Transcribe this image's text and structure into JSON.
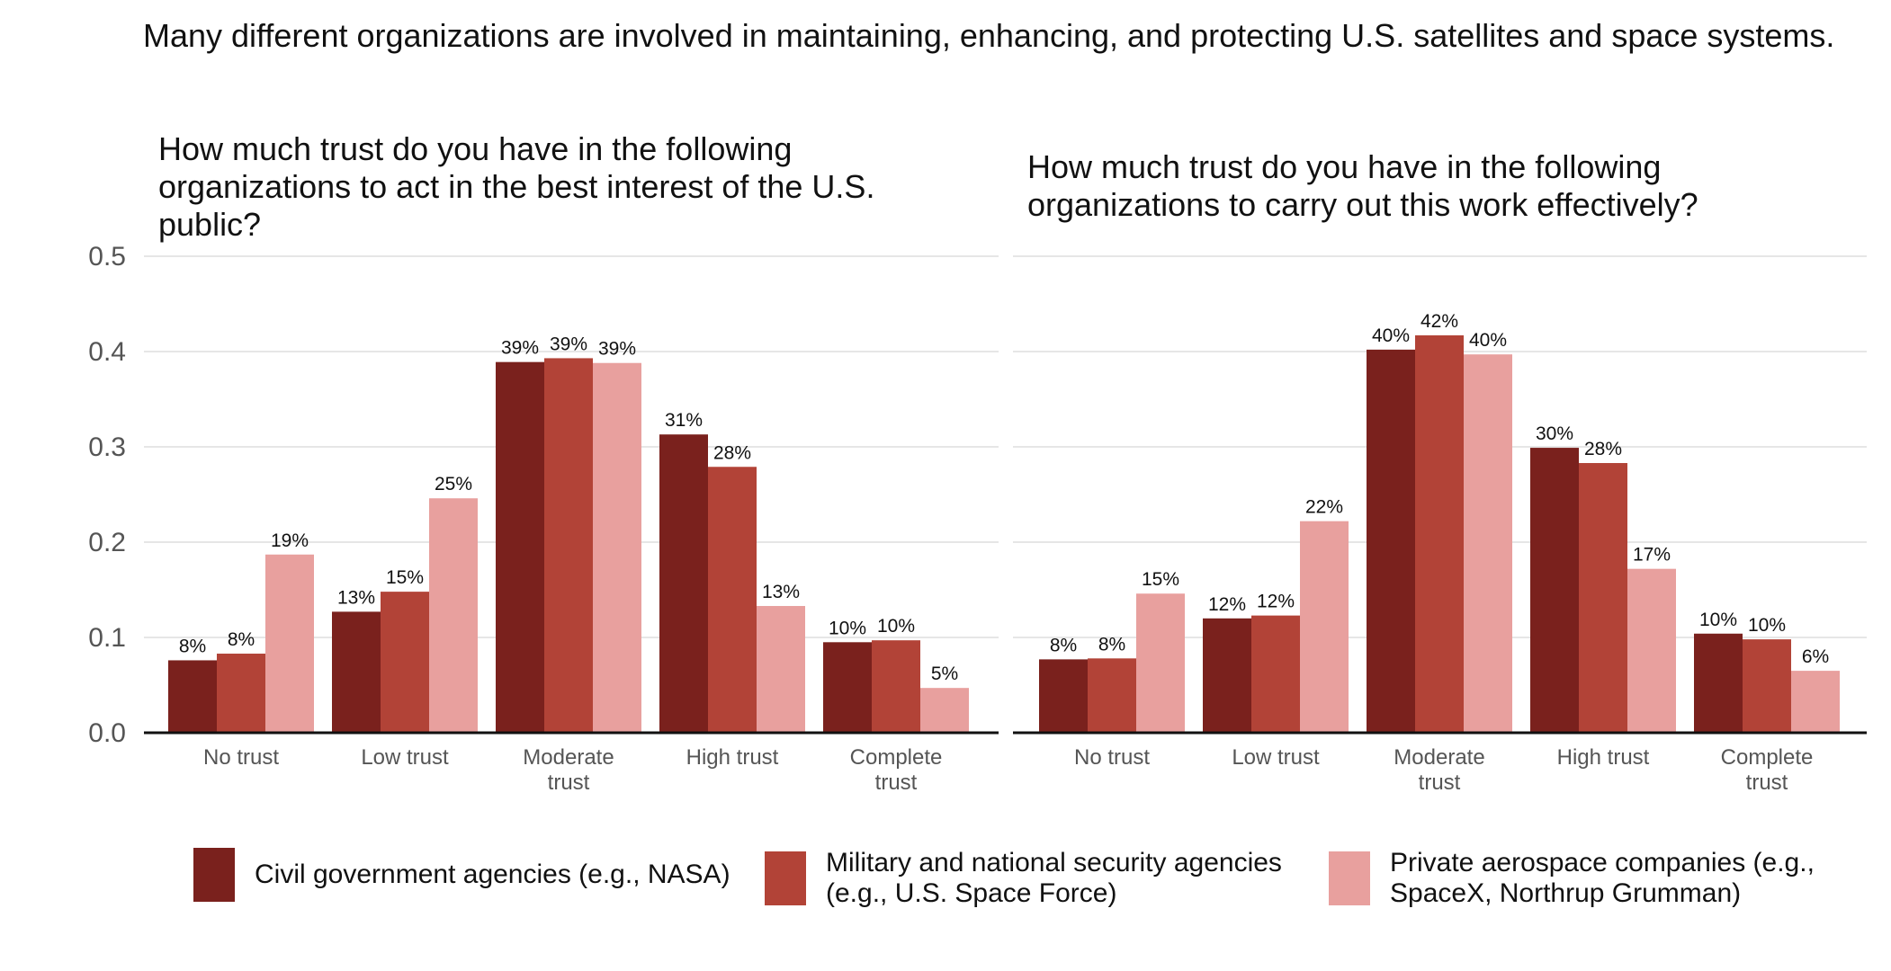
{
  "title": "Many different organizations are involved in maintaining, enhancing, and protecting U.S. satellites and space systems.",
  "colors": [
    "#7a211d",
    "#b24337",
    "#e8a09e"
  ],
  "chart_data": {
    "type": "bar",
    "categories": [
      "No trust",
      "Low trust",
      "Moderate\ntrust",
      "High trust",
      "Complete\ntrust"
    ],
    "ylim": [
      0,
      0.5
    ],
    "yticks": [
      "0.0",
      "0.1",
      "0.2",
      "0.3",
      "0.4",
      "0.5"
    ],
    "legend_position": "bottom",
    "grid": true,
    "legend": [
      {
        "name": "Civil government agencies (e.g., NASA)"
      },
      {
        "name": "Military and national security agencies\n(e.g., U.S. Space Force)"
      },
      {
        "name": "Private aerospace companies (e.g.,\nSpaceX, Northrup Grumman)"
      }
    ],
    "panels": [
      {
        "title": "How much trust do you have in the following organizations to act in the best interest of the U.S. public?",
        "series": [
          {
            "values": [
              0.076,
              0.127,
              0.389,
              0.313,
              0.095
            ],
            "labels": [
              "8%",
              "13%",
              "39%",
              "31%",
              "10%"
            ]
          },
          {
            "values": [
              0.083,
              0.148,
              0.393,
              0.279,
              0.097
            ],
            "labels": [
              "8%",
              "15%",
              "39%",
              "28%",
              "10%"
            ]
          },
          {
            "values": [
              0.187,
              0.246,
              0.388,
              0.133,
              0.047
            ],
            "labels": [
              "19%",
              "25%",
              "39%",
              "13%",
              "5%"
            ]
          }
        ]
      },
      {
        "title": "How much trust do you have in the following organizations to carry out this work effectively?",
        "series": [
          {
            "values": [
              0.077,
              0.12,
              0.402,
              0.299,
              0.104
            ],
            "labels": [
              "8%",
              "12%",
              "40%",
              "30%",
              "10%"
            ]
          },
          {
            "values": [
              0.078,
              0.123,
              0.417,
              0.283,
              0.098
            ],
            "labels": [
              "8%",
              "12%",
              "42%",
              "28%",
              "10%"
            ]
          },
          {
            "values": [
              0.146,
              0.222,
              0.397,
              0.172,
              0.065
            ],
            "labels": [
              "15%",
              "22%",
              "40%",
              "17%",
              "6%"
            ]
          }
        ]
      }
    ]
  }
}
